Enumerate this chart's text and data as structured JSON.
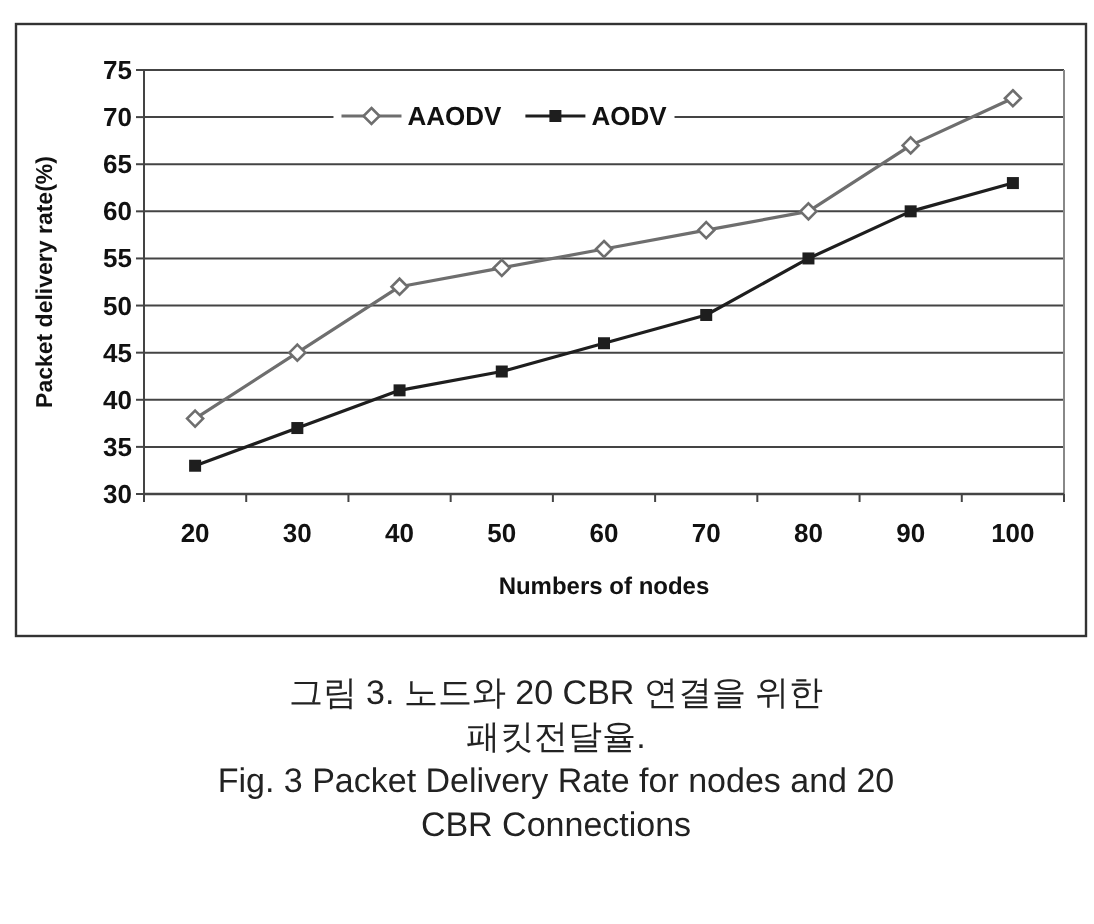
{
  "chart_data": {
    "type": "line",
    "xlabel": "Numbers of nodes",
    "ylabel": "Packet delivery rate(%)",
    "categories": [
      "20",
      "30",
      "40",
      "50",
      "60",
      "70",
      "80",
      "90",
      "100"
    ],
    "series": [
      {
        "name": "AAODV",
        "color": "#6e6e6e",
        "marker": "diamond",
        "values": [
          38,
          45,
          52,
          54,
          56,
          58,
          60,
          67,
          72
        ]
      },
      {
        "name": "AODV",
        "color": "#1e1e1e",
        "marker": "square",
        "values": [
          33,
          37,
          41,
          43,
          46,
          49,
          55,
          60,
          63
        ]
      }
    ],
    "ylim": [
      30,
      75
    ],
    "yticks": [
      30,
      35,
      40,
      45,
      50,
      55,
      60,
      65,
      70,
      75
    ],
    "grid": "y",
    "legend": "top",
    "annotations": [
      "그림 3. 노드와 20 CBR 연결을 위한 패킷전달율.",
      "Fig. 3 Packet Delivery Rate for nodes and 20 CBR Connections"
    ]
  }
}
